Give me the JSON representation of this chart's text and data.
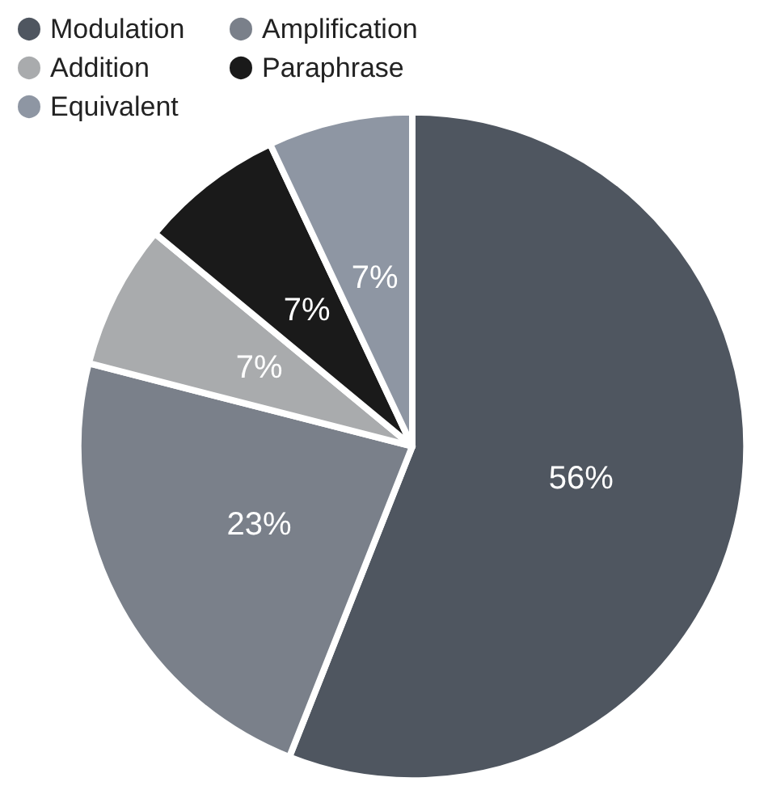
{
  "chart_data": {
    "type": "pie",
    "categories": [
      "Modulation",
      "Amplification",
      "Addition",
      "Paraphrase",
      "Equivalent"
    ],
    "values": [
      56,
      23,
      7,
      7,
      7
    ],
    "colors": [
      "#4f5660",
      "#7a808a",
      "#a9abad",
      "#1a1a1a",
      "#8e96a3"
    ],
    "value_labels": [
      "56%",
      "23%",
      "7%",
      "7%",
      "7%"
    ],
    "legend": "top left"
  }
}
